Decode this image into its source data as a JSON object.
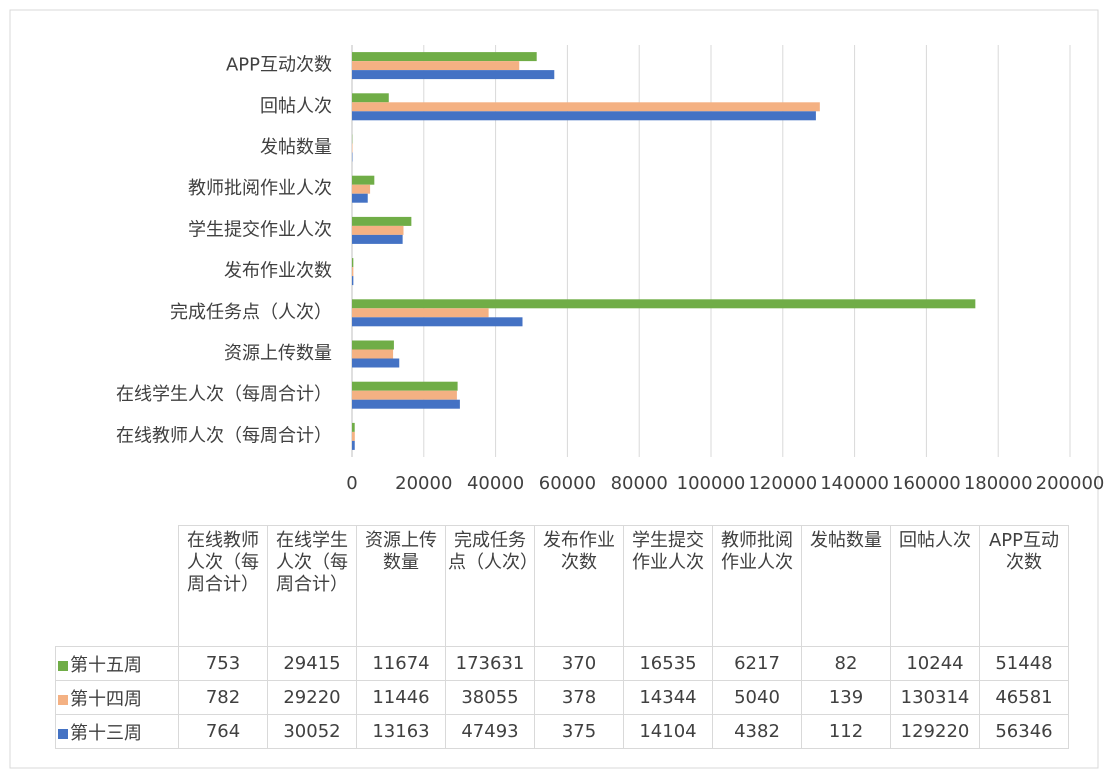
{
  "chart_data": {
    "type": "hbar",
    "categories": [
      "在线教师人次（每周合计）",
      "在线学生人次（每周合计）",
      "资源上传数量",
      "完成任务点（人次）",
      "发布作业次数",
      "学生提交作业人次",
      "教师批阅作业人次",
      "发帖数量",
      "回帖人次",
      "APP互动次数"
    ],
    "series": [
      {
        "name": "第十五周",
        "color": "#70ad47",
        "values": [
          753,
          29415,
          11674,
          173631,
          370,
          16535,
          6217,
          82,
          10244,
          51448
        ]
      },
      {
        "name": "第十四周",
        "color": "#f4b183",
        "values": [
          782,
          29220,
          11446,
          38055,
          378,
          14344,
          5040,
          139,
          130314,
          46581
        ]
      },
      {
        "name": "第十三周",
        "color": "#4472c4",
        "values": [
          764,
          30052,
          13163,
          47493,
          375,
          14104,
          4382,
          112,
          129220,
          56346
        ]
      }
    ],
    "xlim": [
      0,
      200000
    ],
    "xticks": [
      0,
      20000,
      40000,
      60000,
      80000,
      100000,
      120000,
      140000,
      160000,
      180000,
      200000
    ],
    "grid": true
  }
}
